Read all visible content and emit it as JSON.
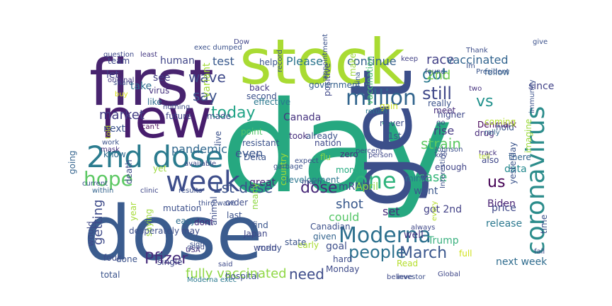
{
  "words": [
    {
      "text": "day",
      "color": "#26a880"
    },
    {
      "text": "dose",
      "color": "#3b5c8e"
    },
    {
      "text": "get",
      "color": "#3c4f8a"
    },
    {
      "text": "first",
      "color": "#48246f"
    },
    {
      "text": "stock",
      "color": "#a9db33"
    },
    {
      "text": "new",
      "color": "#471d6d"
    },
    {
      "text": "coronavirus",
      "color": "#2b8c8b"
    },
    {
      "text": "2nd dose",
      "color": "#2a7b8e"
    },
    {
      "text": "Moderna",
      "color": "#2d708e"
    },
    {
      "text": "week",
      "color": "#3d4d8a"
    },
    {
      "text": "one",
      "color": "#2eb37c"
    },
    {
      "text": "million",
      "color": "#31648d"
    },
    {
      "text": "people",
      "color": "#2c718e"
    },
    {
      "text": "1st dose",
      "color": "#3a528b"
    },
    {
      "text": "dose",
      "color": "#482979"
    },
    {
      "text": "March",
      "color": "#39568c"
    },
    {
      "text": "hope",
      "color": "#5cc863"
    },
    {
      "text": "today",
      "color": "#20a386"
    },
    {
      "text": "wave",
      "color": "#3e4989"
    },
    {
      "text": "still",
      "color": "#3f4788"
    },
    {
      "text": "vs",
      "color": "#21918c"
    },
    {
      "text": "got",
      "color": "#2a788e"
    },
    {
      "text": "strain",
      "color": "#5dc962"
    },
    {
      "text": "say",
      "color": "#3b528b"
    },
    {
      "text": "Pfizer",
      "color": "#472d7b"
    },
    {
      "text": "fully vaccinated",
      "color": "#8fd744"
    },
    {
      "text": "need",
      "color": "#3e4c8a"
    },
    {
      "text": "shot",
      "color": "#38588c"
    },
    {
      "text": "market",
      "color": "#433e85"
    },
    {
      "text": "race",
      "color": "#424086"
    },
    {
      "text": "vaccinated",
      "color": "#32648e"
    },
    {
      "text": "2nd",
      "color": "#7ad151"
    },
    {
      "text": "getting",
      "color": "#3e4a89"
    },
    {
      "text": "Please",
      "color": "#2b758e"
    },
    {
      "text": "continue",
      "color": "#34608d"
    },
    {
      "text": "us",
      "color": "#440154"
    },
    {
      "text": "even",
      "color": "#39558c"
    },
    {
      "text": "rise",
      "color": "#453882"
    },
    {
      "text": "Canada",
      "color": "#46337f"
    },
    {
      "text": "could",
      "color": "#56c667"
    },
    {
      "text": "set",
      "color": "#472c7a"
    },
    {
      "text": "case",
      "color": "#35b779"
    },
    {
      "text": "human",
      "color": "#404588"
    },
    {
      "text": "pandemic",
      "color": "#31688e"
    },
    {
      "text": "test",
      "color": "#38588c"
    },
    {
      "text": "take",
      "color": "#2e6e8e"
    },
    {
      "text": "let",
      "color": "#423f85"
    },
    {
      "text": "see",
      "color": "#433d84"
    },
    {
      "text": "like",
      "color": "#2f6c8e"
    },
    {
      "text": "virus",
      "color": "#46327e"
    },
    {
      "text": "variant",
      "color": "#a2da37"
    },
    {
      "text": "future",
      "color": "#404688"
    },
    {
      "text": "made",
      "color": "#3c4f8a"
    },
    {
      "text": "know",
      "color": "#2f6b8e"
    },
    {
      "text": "next",
      "color": "#3b518b"
    },
    {
      "text": "yet",
      "color": "#9bd93c"
    },
    {
      "text": "great",
      "color": "#472878"
    },
    {
      "text": "point",
      "color": "#52c569"
    },
    {
      "text": "development",
      "color": "#2a768e"
    },
    {
      "text": "already",
      "color": "#3b528b"
    },
    {
      "text": "zero",
      "color": "#46307e"
    },
    {
      "text": "month",
      "color": "#27ad81"
    },
    {
      "text": "mink",
      "color": "#2c728e"
    },
    {
      "text": "enough",
      "color": "#414487"
    },
    {
      "text": "want",
      "color": "#39568c"
    },
    {
      "text": "got 2nd",
      "color": "#424186"
    },
    {
      "text": "mRNA",
      "color": "#3e4989"
    },
    {
      "text": "April",
      "color": "#8bd646"
    },
    {
      "text": "Biden",
      "color": "#482173"
    },
    {
      "text": "release",
      "color": "#2a788e"
    },
    {
      "text": "Trump",
      "color": "#3ab07f"
    },
    {
      "text": "well",
      "color": "#453581"
    },
    {
      "text": "goal",
      "color": "#3d4e8a"
    },
    {
      "text": "Monday",
      "color": "#3e4a89"
    },
    {
      "text": "next week",
      "color": "#2f6c8e"
    },
    {
      "text": "price",
      "color": "#3f4889"
    },
    {
      "text": "data",
      "color": "#23898e"
    },
    {
      "text": "there",
      "color": "#33638d"
    },
    {
      "text": "drug",
      "color": "#472a7a"
    },
    {
      "text": "Denmark",
      "color": "#440154"
    },
    {
      "text": "higher",
      "color": "#3f4889"
    },
    {
      "text": "really",
      "color": "#3b528b"
    },
    {
      "text": "since",
      "color": "#414287"
    },
    {
      "text": "follow",
      "color": "#33628d"
    },
    {
      "text": "hold",
      "color": "#3a538b"
    },
    {
      "text": "coming",
      "color": "#b5de2b"
    },
    {
      "text": "rally",
      "color": "#32658e"
    },
    {
      "text": "track",
      "color": "#46337f"
    },
    {
      "text": "also",
      "color": "#3f4788"
    },
    {
      "text": "give",
      "color": "#3b518b"
    },
    {
      "text": "help",
      "color": "#3a548c"
    },
    {
      "text": "second",
      "color": "#3c508b"
    },
    {
      "text": "effective",
      "color": "#2a778e"
    },
    {
      "text": "back",
      "color": "#443983"
    },
    {
      "text": "make",
      "color": "#9dd93b"
    },
    {
      "text": "positive",
      "color": "#3f4788"
    },
    {
      "text": "government",
      "color": "#35608d"
    },
    {
      "text": "never",
      "color": "#3d4e8a"
    },
    {
      "text": "1st",
      "color": "#3a538b"
    },
    {
      "text": "took",
      "color": "#472e7c"
    },
    {
      "text": "team",
      "color": "#3f4788"
    },
    {
      "text": "question",
      "color": "#3e4989"
    },
    {
      "text": "least",
      "color": "#453882"
    },
    {
      "text": "Thank",
      "color": "#3d4e8a"
    },
    {
      "text": "keep",
      "color": "#424186"
    },
    {
      "text": "record",
      "color": "#3e4c8a"
    },
    {
      "text": "Dow",
      "color": "#404588"
    },
    {
      "text": "found",
      "color": "#3e4989"
    },
    {
      "text": "President",
      "color": "#39568c"
    },
    {
      "text": "Im",
      "color": "#3b518b"
    },
    {
      "text": "two",
      "color": "#46327e"
    },
    {
      "text": "go",
      "color": "#3f4889"
    },
    {
      "text": "meet",
      "color": "#472c7a"
    },
    {
      "text": "Johnson",
      "color": "#3c4f8a"
    },
    {
      "text": "tell",
      "color": "#bade28"
    },
    {
      "text": "person",
      "color": "#3f4788"
    },
    {
      "text": "percent",
      "color": "#3e4989"
    },
    {
      "text": "gain",
      "color": "#cde11d"
    },
    {
      "text": "return",
      "color": "#2a788e"
    },
    {
      "text": "China",
      "color": "#39568c"
    },
    {
      "text": "appointment",
      "color": "#3b528b"
    },
    {
      "text": "vaccination",
      "color": "#4ac16d"
    },
    {
      "text": "going",
      "color": "#33638d"
    },
    {
      "text": "death",
      "color": "#3e4989"
    },
    {
      "text": "share",
      "color": "#3d4e8a"
    },
    {
      "text": "buy",
      "color": "#d8e219"
    },
    {
      "text": "original",
      "color": "#443983"
    },
    {
      "text": "told",
      "color": "#c2df23"
    },
    {
      "text": "can't",
      "color": "#440154"
    },
    {
      "text": "nothing",
      "color": "#3e4c8a"
    },
    {
      "text": "work",
      "color": "#3b518b"
    },
    {
      "text": "mask",
      "color": "#46307e"
    },
    {
      "text": "available",
      "color": "#3e4a89"
    },
    {
      "text": "current",
      "color": "#3a548c"
    },
    {
      "text": "within",
      "color": "#33638d"
    },
    {
      "text": "clinic",
      "color": "#3f4788"
    },
    {
      "text": "results",
      "color": "#3c4f8a"
    },
    {
      "text": "year",
      "color": "#a5db36"
    },
    {
      "text": "resistant",
      "color": "#3b528b"
    },
    {
      "text": "Delta",
      "color": "#3a538b"
    },
    {
      "text": "flu",
      "color": "#8bd646"
    },
    {
      "text": "nation",
      "color": "#3f4889"
    },
    {
      "text": "live",
      "color": "#3b518b"
    },
    {
      "text": "mutation",
      "color": "#3c4f8a"
    },
    {
      "text": "easy",
      "color": "#2f6c8e"
    },
    {
      "text": "may",
      "color": "#3e4c8a"
    },
    {
      "text": "animal",
      "color": "#3d4e8a"
    },
    {
      "text": "dont",
      "color": "#472e7c"
    },
    {
      "text": "nearly",
      "color": "#8fd744"
    },
    {
      "text": "early",
      "color": "#a8db34"
    },
    {
      "text": "Canadian",
      "color": "#3c4f8a"
    },
    {
      "text": "state",
      "color": "#3a538b"
    },
    {
      "text": "given",
      "color": "#33638d"
    },
    {
      "text": "Japan",
      "color": "#3f4788"
    },
    {
      "text": "many",
      "color": "#3b518b"
    },
    {
      "text": "order",
      "color": "#3e4c8a"
    },
    {
      "text": "last",
      "color": "#3b528b"
    },
    {
      "text": "third wave",
      "color": "#3c4f8a"
    },
    {
      "text": "find",
      "color": "#3a548c"
    },
    {
      "text": "world",
      "color": "#3f4889"
    },
    {
      "text": "said",
      "color": "#3e4a89"
    },
    {
      "text": "sign",
      "color": "#3b518b"
    },
    {
      "text": "USA",
      "color": "#46327e"
    },
    {
      "text": "good",
      "color": "#3d4e8a"
    },
    {
      "text": "single",
      "color": "#3f4788"
    },
    {
      "text": "saying",
      "color": "#9dd93b"
    },
    {
      "text": "desperately",
      "color": "#3c4f8a"
    },
    {
      "text": "done",
      "color": "#3b528b"
    },
    {
      "text": "would",
      "color": "#3f4889"
    },
    {
      "text": "four",
      "color": "#3e4c8a"
    },
    {
      "text": "total",
      "color": "#3a538b"
    },
    {
      "text": "Moderna exec",
      "color": "#2a788e"
    },
    {
      "text": "hospital",
      "color": "#3b518b"
    },
    {
      "text": "Read",
      "color": "#b5de2b"
    },
    {
      "text": "believe",
      "color": "#3e4a89"
    },
    {
      "text": "investor",
      "color": "#3c4f8a"
    },
    {
      "text": "Global",
      "color": "#3f4788"
    },
    {
      "text": "full",
      "color": "#d0e11c"
    },
    {
      "text": "time",
      "color": "#3b528b"
    },
    {
      "text": "yesterday",
      "color": "#3a538b"
    },
    {
      "text": "imagine",
      "color": "#9bd93c"
    },
    {
      "text": "Interesting",
      "color": "#3c4f8a"
    },
    {
      "text": "key",
      "color": "#3e4989"
    },
    {
      "text": "always",
      "color": "#3f4788"
    },
    {
      "text": "every",
      "color": "#b5de2b"
    },
    {
      "text": "immunity",
      "color": "#3b518b"
    },
    {
      "text": "hard",
      "color": "#3e4c8a"
    },
    {
      "text": "much",
      "color": "#3f4889"
    },
    {
      "text": "country",
      "color": "#a2da37"
    },
    {
      "text": "garbage",
      "color": "#3b528b"
    },
    {
      "text": "expect",
      "color": "#3c4f8a"
    },
    {
      "text": "fall",
      "color": "#3e4989"
    },
    {
      "text": "exec dumped",
      "color": "#3b518b"
    }
  ]
}
